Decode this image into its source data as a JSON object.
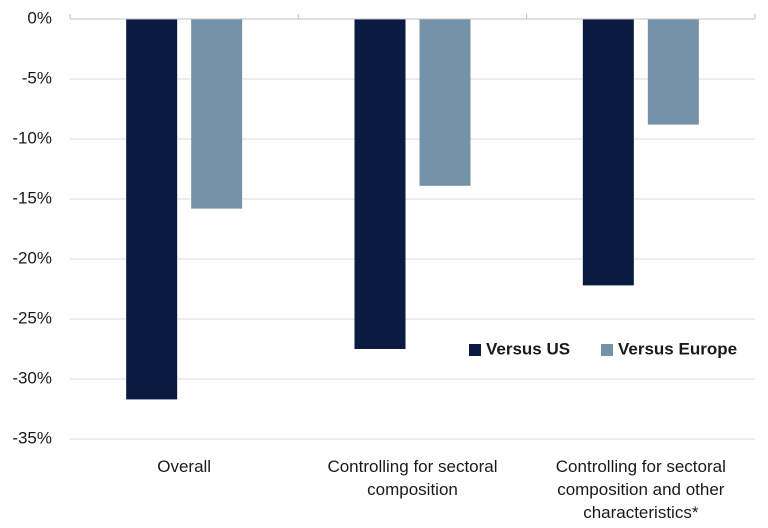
{
  "chart_data": {
    "type": "bar",
    "title": "",
    "xlabel": "",
    "ylabel": "",
    "categories": [
      [
        "Overall"
      ],
      [
        "Controlling for sectoral",
        "composition"
      ],
      [
        "Controlling for sectoral",
        "composition and other",
        "characteristics*"
      ]
    ],
    "series": [
      {
        "name": "Versus US",
        "color": "#0b1a40",
        "values": [
          -31.7,
          -27.5,
          -22.2
        ]
      },
      {
        "name": "Versus Europe",
        "color": "#7593a8",
        "values": [
          -15.8,
          -13.9,
          -8.8
        ]
      }
    ],
    "ylim": [
      -35,
      0
    ],
    "yticks": [
      0,
      -5,
      -10,
      -15,
      -20,
      -25,
      -30,
      -35
    ],
    "ytick_labels": [
      "0%",
      "-5%",
      "-10%",
      "-15%",
      "-20%",
      "-25%",
      "-30%",
      "-35%"
    ],
    "grid": true,
    "legend_position": "right, inside plot"
  }
}
